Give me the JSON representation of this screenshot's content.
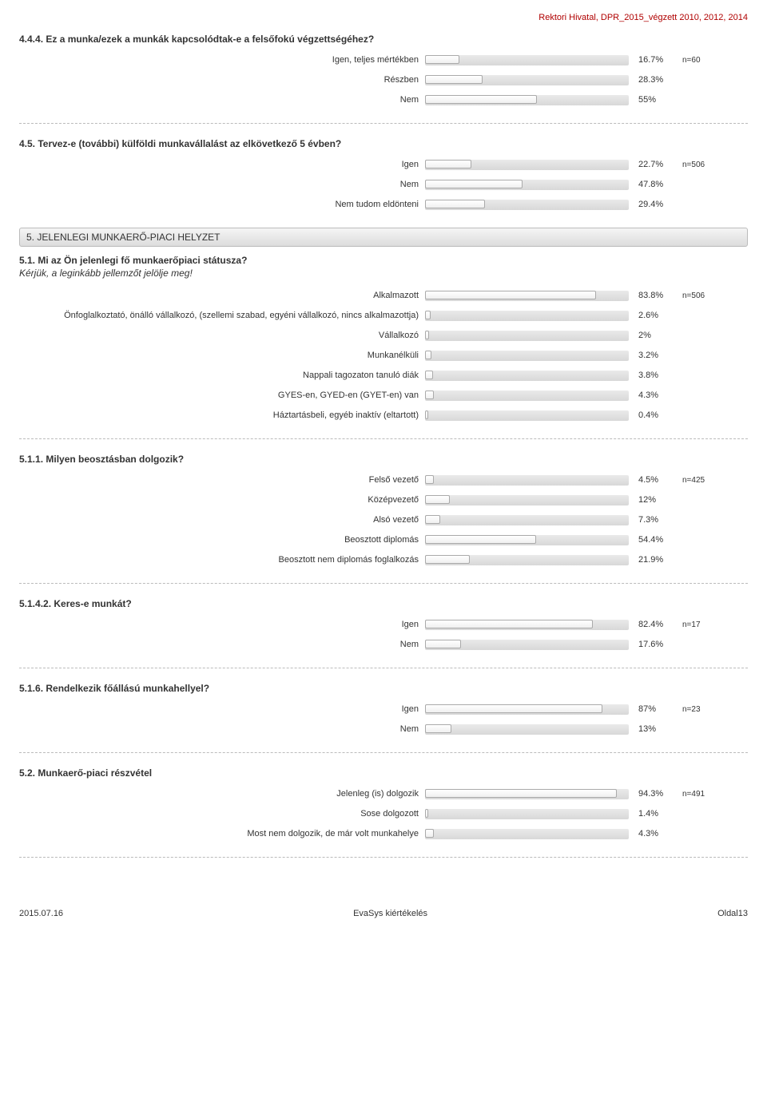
{
  "header": "Rektori Hivatal, DPR_2015_végzett 2010, 2012, 2014",
  "sections": [
    {
      "type": "question",
      "title": "4.4.4. Ez a munka/ezek a munkák kapcsolódtak-e a felsőfokú végzettségéhez?",
      "n": "n=60",
      "options": [
        {
          "label": "Igen, teljes mértékben",
          "val": "16.7%",
          "pct": 16.7
        },
        {
          "label": "Részben",
          "val": "28.3%",
          "pct": 28.3
        },
        {
          "label": "Nem",
          "val": "55%",
          "pct": 55
        }
      ]
    },
    {
      "type": "divider"
    },
    {
      "type": "question",
      "title": "4.5. Tervez-e (további) külföldi munkavállalást az elkövetkező 5 évben?",
      "n": "n=506",
      "options": [
        {
          "label": "Igen",
          "val": "22.7%",
          "pct": 22.7
        },
        {
          "label": "Nem",
          "val": "47.8%",
          "pct": 47.8
        },
        {
          "label": "Nem tudom eldönteni",
          "val": "29.4%",
          "pct": 29.4
        }
      ]
    },
    {
      "type": "section",
      "title": "5. JELENLEGI MUNKAERŐ-PIACI HELYZET"
    },
    {
      "type": "question",
      "title": "5.1. Mi az Ön jelenlegi fő munkaerőpiaci státusza?",
      "subtitle": "Kérjük, a leginkább jellemzőt jelölje meg!",
      "n": "n=506",
      "options": [
        {
          "label": "Alkalmazott",
          "val": "83.8%",
          "pct": 83.8
        },
        {
          "label": "Önfoglalkoztató, önálló vállalkozó, (szellemi szabad, egyéni vállalkozó, nincs alkalmazottja)",
          "val": "2.6%",
          "pct": 2.6
        },
        {
          "label": "Vállalkozó",
          "val": "2%",
          "pct": 2
        },
        {
          "label": "Munkanélküli",
          "val": "3.2%",
          "pct": 3.2
        },
        {
          "label": "Nappali tagozaton tanuló diák",
          "val": "3.8%",
          "pct": 3.8
        },
        {
          "label": "GYES-en, GYED-en (GYET-en) van",
          "val": "4.3%",
          "pct": 4.3
        },
        {
          "label": "Háztartásbeli, egyéb inaktív (eltartott)",
          "val": "0.4%",
          "pct": 0.4
        }
      ]
    },
    {
      "type": "divider"
    },
    {
      "type": "question",
      "title": "5.1.1. Milyen beosztásban dolgozik?",
      "n": "n=425",
      "options": [
        {
          "label": "Felső vezető",
          "val": "4.5%",
          "pct": 4.5
        },
        {
          "label": "Középvezető",
          "val": "12%",
          "pct": 12
        },
        {
          "label": "Alsó vezető",
          "val": "7.3%",
          "pct": 7.3
        },
        {
          "label": "Beosztott diplomás",
          "val": "54.4%",
          "pct": 54.4
        },
        {
          "label": "Beosztott nem diplomás foglalkozás",
          "val": "21.9%",
          "pct": 21.9
        }
      ]
    },
    {
      "type": "divider"
    },
    {
      "type": "question",
      "title": "5.1.4.2. Keres-e munkát?",
      "n": "n=17",
      "options": [
        {
          "label": "Igen",
          "val": "82.4%",
          "pct": 82.4
        },
        {
          "label": "Nem",
          "val": "17.6%",
          "pct": 17.6
        }
      ]
    },
    {
      "type": "divider"
    },
    {
      "type": "question",
      "title": "5.1.6. Rendelkezik főállású munkahellyel?",
      "n": "n=23",
      "options": [
        {
          "label": "Igen",
          "val": "87%",
          "pct": 87
        },
        {
          "label": "Nem",
          "val": "13%",
          "pct": 13
        }
      ]
    },
    {
      "type": "divider"
    },
    {
      "type": "question",
      "title": "5.2. Munkaerő-piaci részvétel",
      "n": "n=491",
      "options": [
        {
          "label": "Jelenleg (is) dolgozik",
          "val": "94.3%",
          "pct": 94.3
        },
        {
          "label": "Sose dolgozott",
          "val": "1.4%",
          "pct": 1.4
        },
        {
          "label": "Most nem dolgozik, de már volt munkahelye",
          "val": "4.3%",
          "pct": 4.3
        }
      ]
    },
    {
      "type": "divider"
    }
  ],
  "footer": {
    "left": "2015.07.16",
    "center": "EvaSys kiértékelés",
    "right": "Oldal13"
  }
}
